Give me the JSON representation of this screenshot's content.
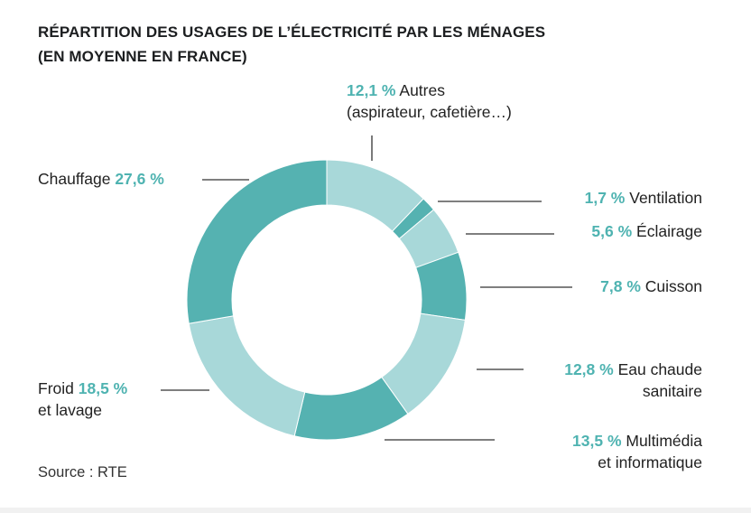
{
  "title": {
    "line1": "RÉPARTITION DES USAGES DE L’ÉLECTRICITÉ PAR LES MÉNAGES",
    "line2": "(EN MOYENNE EN FRANCE)"
  },
  "source": "Source : RTE",
  "colors": {
    "dark": "#55b2b1",
    "light": "#a8d8d9",
    "accent_text": "#4fb3b1"
  },
  "chart_data": {
    "type": "pie",
    "style": "donut",
    "title": "RÉPARTITION DES USAGES DE L’ÉLECTRICITÉ PAR LES MÉNAGES (EN MOYENNE EN FRANCE)",
    "unit": "%",
    "start": "12 o'clock, clockwise",
    "slices": [
      {
        "name": "Autres",
        "value": 12.1,
        "pct_label": "12,1 %",
        "label_1": "Autres",
        "label_2": "(aspirateur, cafetière…)",
        "shade": "light"
      },
      {
        "name": "Ventilation",
        "value": 1.7,
        "pct_label": "1,7 %",
        "label_1": "Ventilation",
        "label_2": "",
        "shade": "dark"
      },
      {
        "name": "Éclairage",
        "value": 5.6,
        "pct_label": "5,6 %",
        "label_1": "Éclairage",
        "label_2": "",
        "shade": "light"
      },
      {
        "name": "Cuisson",
        "value": 7.8,
        "pct_label": "7,8 %",
        "label_1": "Cuisson",
        "label_2": "",
        "shade": "dark"
      },
      {
        "name": "Eau chaude sanitaire",
        "value": 12.8,
        "pct_label": "12,8 %",
        "label_1": "Eau chaude",
        "label_2": "sanitaire",
        "shade": "light"
      },
      {
        "name": "Multimédia et informatique",
        "value": 13.5,
        "pct_label": "13,5 %",
        "label_1": "Multimédia",
        "label_2": "et informatique",
        "shade": "dark"
      },
      {
        "name": "Froid et lavage",
        "value": 18.5,
        "pct_label": "18,5 %",
        "label_1": "Froid",
        "label_2": "et lavage",
        "shade": "light"
      },
      {
        "name": "Chauffage",
        "value": 27.6,
        "pct_label": "27,6 %",
        "label_1": "Chauffage",
        "label_2": "",
        "shade": "dark"
      }
    ]
  }
}
